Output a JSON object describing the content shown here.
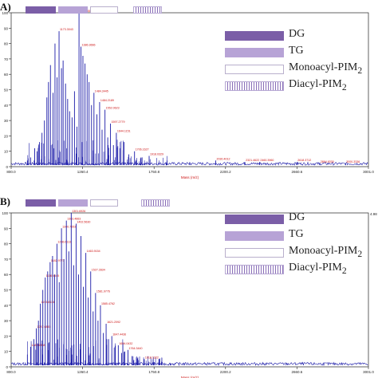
{
  "figure": {
    "panels": [
      {
        "letter": "A)",
        "right_axis_tick": "",
        "legend": [
          {
            "label": "DG",
            "sub": "",
            "swatch": "dg"
          },
          {
            "label": "TG",
            "sub": "",
            "swatch": "tg"
          },
          {
            "label": "Monoacyl-PIM",
            "sub": "2",
            "swatch": "mono"
          },
          {
            "label": "Diacyl-PIM",
            "sub": "2",
            "swatch": "di"
          }
        ]
      },
      {
        "letter": "B)",
        "right_axis_tick": "4.98",
        "legend": [
          {
            "label": "DG",
            "sub": "",
            "swatch": "dg"
          },
          {
            "label": "TG",
            "sub": "",
            "swatch": "tg"
          },
          {
            "label": "Monoacyl-PIM",
            "sub": "2",
            "swatch": "mono"
          },
          {
            "label": "Diacyl-PIM",
            "sub": "2",
            "swatch": "di"
          }
        ]
      }
    ],
    "colors": {
      "spectrum": "#1a1aa8",
      "peak_label": "#cc1111",
      "xlabel": "#cc1111",
      "dg": "#7b5ea7",
      "tg": "#b7a3d6",
      "di": "#8a6fb8"
    }
  },
  "chart_data": [
    {
      "type": "line",
      "panel": "A)",
      "title": "",
      "xlabel": "Mass (m/z)",
      "ylabel": "",
      "xlim": [
        800.0,
        3001.0
      ],
      "ylim": [
        0,
        100
      ],
      "x_ticks": [
        "800.0",
        "1260.4",
        "1750.8",
        "2200.2",
        "2660.6",
        "3001.0"
      ],
      "y_ticks": [
        "0",
        "10",
        "20",
        "30",
        "40",
        "50",
        "60",
        "70",
        "80",
        "90",
        "100"
      ],
      "peaks": [
        {
          "x": 900,
          "y": 4,
          "label": ""
        },
        {
          "x": 920,
          "y": 6,
          "label": ""
        },
        {
          "x": 945,
          "y": 12,
          "label": ""
        },
        {
          "x": 960,
          "y": 10,
          "label": ""
        },
        {
          "x": 975,
          "y": 16,
          "label": ""
        },
        {
          "x": 990,
          "y": 22,
          "label": ""
        },
        {
          "x": 1005,
          "y": 30,
          "label": ""
        },
        {
          "x": 1020,
          "y": 45,
          "label": ""
        },
        {
          "x": 1030,
          "y": 55,
          "label": ""
        },
        {
          "x": 1042,
          "y": 66,
          "label": ""
        },
        {
          "x": 1058,
          "y": 48,
          "label": ""
        },
        {
          "x": 1070,
          "y": 80,
          "label": ""
        },
        {
          "x": 1083,
          "y": 58,
          "label": ""
        },
        {
          "x": 1095,
          "y": 88,
          "label": "1173.3043"
        },
        {
          "x": 1110,
          "y": 64,
          "label": ""
        },
        {
          "x": 1120,
          "y": 69,
          "label": ""
        },
        {
          "x": 1135,
          "y": 54,
          "label": ""
        },
        {
          "x": 1148,
          "y": 44,
          "label": ""
        },
        {
          "x": 1160,
          "y": 36,
          "label": ""
        },
        {
          "x": 1175,
          "y": 32,
          "label": ""
        },
        {
          "x": 1190,
          "y": 49,
          "label": ""
        },
        {
          "x": 1205,
          "y": 26,
          "label": ""
        },
        {
          "x": 1218,
          "y": 100,
          "label": "1415.5530"
        },
        {
          "x": 1230,
          "y": 78,
          "label": "1386.3666"
        },
        {
          "x": 1242,
          "y": 72,
          "label": ""
        },
        {
          "x": 1255,
          "y": 67,
          "label": ""
        },
        {
          "x": 1268,
          "y": 60,
          "label": ""
        },
        {
          "x": 1280,
          "y": 55,
          "label": ""
        },
        {
          "x": 1295,
          "y": 40,
          "label": ""
        },
        {
          "x": 1310,
          "y": 48,
          "label": "1484.3445"
        },
        {
          "x": 1328,
          "y": 34,
          "label": ""
        },
        {
          "x": 1345,
          "y": 42,
          "label": "1484.2189"
        },
        {
          "x": 1360,
          "y": 24,
          "label": ""
        },
        {
          "x": 1378,
          "y": 37,
          "label": "1552.0623"
        },
        {
          "x": 1395,
          "y": 19,
          "label": ""
        },
        {
          "x": 1412,
          "y": 28,
          "label": "1597.2779"
        },
        {
          "x": 1430,
          "y": 14,
          "label": ""
        },
        {
          "x": 1448,
          "y": 22,
          "label": "1644.1151"
        },
        {
          "x": 1470,
          "y": 12,
          "label": ""
        },
        {
          "x": 1495,
          "y": 16,
          "label": ""
        },
        {
          "x": 1525,
          "y": 8,
          "label": ""
        },
        {
          "x": 1560,
          "y": 10,
          "label": "1706.1627"
        },
        {
          "x": 1600,
          "y": 6,
          "label": ""
        },
        {
          "x": 1650,
          "y": 7,
          "label": "1918.0329"
        },
        {
          "x": 1760,
          "y": 4,
          "label": ""
        },
        {
          "x": 1900,
          "y": 3,
          "label": ""
        },
        {
          "x": 2060,
          "y": 4,
          "label": "2030.4012"
        },
        {
          "x": 2240,
          "y": 3,
          "label": "2321.4622"
        },
        {
          "x": 2330,
          "y": 3,
          "label": "2460.3960"
        },
        {
          "x": 2560,
          "y": 3,
          "label": "2618.3712"
        },
        {
          "x": 2700,
          "y": 2,
          "label": "2894.9330"
        },
        {
          "x": 2860,
          "y": 2,
          "label": "3000.3336"
        }
      ]
    },
    {
      "type": "line",
      "panel": "B)",
      "title": "",
      "xlabel": "Mass (m/z)",
      "ylabel": "",
      "xlim": [
        800.0,
        3001.0
      ],
      "ylim": [
        0,
        100
      ],
      "x_ticks": [
        "800.0",
        "1260.4",
        "1750.8",
        "2200.2",
        "2660.6",
        "3001.0"
      ],
      "y_ticks": [
        "0",
        "10",
        "20",
        "30",
        "40",
        "50",
        "60",
        "70",
        "80",
        "90",
        "100"
      ],
      "peaks": [
        {
          "x": 900,
          "y": 8,
          "label": ""
        },
        {
          "x": 920,
          "y": 13,
          "label": "1287.6858"
        },
        {
          "x": 940,
          "y": 18,
          "label": ""
        },
        {
          "x": 955,
          "y": 25,
          "label": "1287.6845"
        },
        {
          "x": 968,
          "y": 30,
          "label": ""
        },
        {
          "x": 980,
          "y": 41,
          "label": "1193.8634"
        },
        {
          "x": 995,
          "y": 50,
          "label": ""
        },
        {
          "x": 1010,
          "y": 58,
          "label": "1116.4545"
        },
        {
          "x": 1025,
          "y": 62,
          "label": ""
        },
        {
          "x": 1040,
          "y": 68,
          "label": "1182.9773"
        },
        {
          "x": 1055,
          "y": 72,
          "label": ""
        },
        {
          "x": 1068,
          "y": 60,
          "label": ""
        },
        {
          "x": 1082,
          "y": 80,
          "label": "1256.6113"
        },
        {
          "x": 1096,
          "y": 55,
          "label": ""
        },
        {
          "x": 1110,
          "y": 90,
          "label": "1340.7653"
        },
        {
          "x": 1125,
          "y": 70,
          "label": ""
        },
        {
          "x": 1140,
          "y": 95,
          "label": "1363.4663"
        },
        {
          "x": 1155,
          "y": 75,
          "label": ""
        },
        {
          "x": 1170,
          "y": 100,
          "label": "1301.6926"
        },
        {
          "x": 1185,
          "y": 66,
          "label": ""
        },
        {
          "x": 1200,
          "y": 93,
          "label": "1402.5630"
        },
        {
          "x": 1215,
          "y": 60,
          "label": ""
        },
        {
          "x": 1230,
          "y": 85,
          "label": ""
        },
        {
          "x": 1245,
          "y": 52,
          "label": ""
        },
        {
          "x": 1260,
          "y": 74,
          "label": "1463.9154"
        },
        {
          "x": 1275,
          "y": 45,
          "label": ""
        },
        {
          "x": 1290,
          "y": 62,
          "label": "1527.2834"
        },
        {
          "x": 1305,
          "y": 36,
          "label": ""
        },
        {
          "x": 1320,
          "y": 48,
          "label": "1581.9776"
        },
        {
          "x": 1335,
          "y": 30,
          "label": ""
        },
        {
          "x": 1350,
          "y": 40,
          "label": "1585.4762"
        },
        {
          "x": 1368,
          "y": 22,
          "label": ""
        },
        {
          "x": 1385,
          "y": 28,
          "label": "1621.2092"
        },
        {
          "x": 1400,
          "y": 18,
          "label": ""
        },
        {
          "x": 1420,
          "y": 20,
          "label": "1647.4436"
        },
        {
          "x": 1440,
          "y": 13,
          "label": ""
        },
        {
          "x": 1460,
          "y": 14,
          "label": "1694.0432"
        },
        {
          "x": 1480,
          "y": 9,
          "label": ""
        },
        {
          "x": 1500,
          "y": 10,
          "label": ""
        },
        {
          "x": 1520,
          "y": 11,
          "label": "1764.3440"
        },
        {
          "x": 1545,
          "y": 7,
          "label": ""
        },
        {
          "x": 1580,
          "y": 6,
          "label": ""
        },
        {
          "x": 1620,
          "y": 5,
          "label": "1918.1322"
        },
        {
          "x": 1680,
          "y": 3,
          "label": ""
        },
        {
          "x": 1780,
          "y": 2,
          "label": ""
        }
      ]
    }
  ]
}
